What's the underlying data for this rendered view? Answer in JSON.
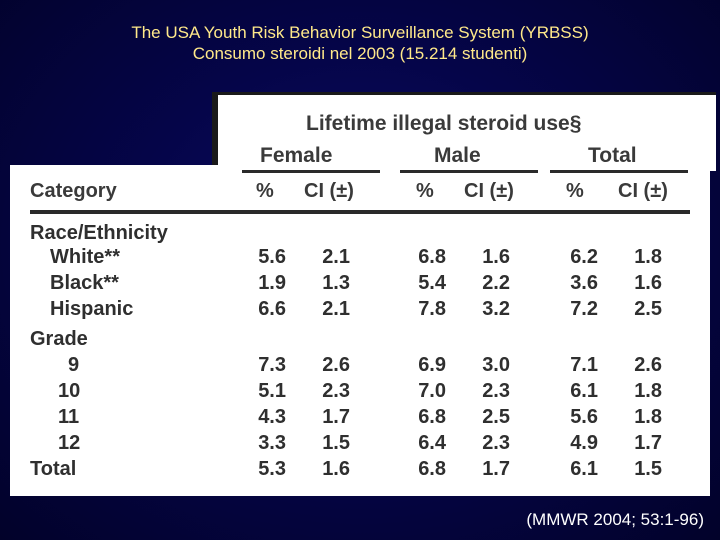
{
  "slide": {
    "title_line1": "The USA Youth Risk Behavior Surveillance System (YRBSS)",
    "title_line2": "Consumo steroidi nel 2003 (15.214 studenti)",
    "citation": "(MMWR 2004; 53:1-96)"
  },
  "table": {
    "super_header": "Lifetime illegal steroid use§",
    "groups": [
      "Female",
      "Male",
      "Total"
    ],
    "category_header": "Category",
    "col_pct": "%",
    "col_ci": "CI (±)",
    "section_race": "Race/Ethnicity",
    "section_grade": "Grade",
    "rows": [
      {
        "label": "White**",
        "values": [
          "5.6",
          "2.1",
          "6.8",
          "1.6",
          "6.2",
          "1.8"
        ]
      },
      {
        "label": "Black**",
        "values": [
          "1.9",
          "1.3",
          "5.4",
          "2.2",
          "3.6",
          "1.6"
        ]
      },
      {
        "label": "Hispanic",
        "values": [
          "6.6",
          "2.1",
          "7.8",
          "3.2",
          "7.2",
          "2.5"
        ]
      },
      {
        "label": "9",
        "values": [
          "7.3",
          "2.6",
          "6.9",
          "3.0",
          "7.1",
          "2.6"
        ]
      },
      {
        "label": "10",
        "values": [
          "5.1",
          "2.3",
          "7.0",
          "2.3",
          "6.1",
          "1.8"
        ]
      },
      {
        "label": "11",
        "values": [
          "4.3",
          "1.7",
          "6.8",
          "2.5",
          "5.6",
          "1.8"
        ]
      },
      {
        "label": "12",
        "values": [
          "3.3",
          "1.5",
          "6.4",
          "2.3",
          "4.9",
          "1.7"
        ]
      },
      {
        "label": "Total",
        "values": [
          "5.3",
          "1.6",
          "6.8",
          "1.7",
          "6.1",
          "1.5"
        ]
      }
    ]
  }
}
